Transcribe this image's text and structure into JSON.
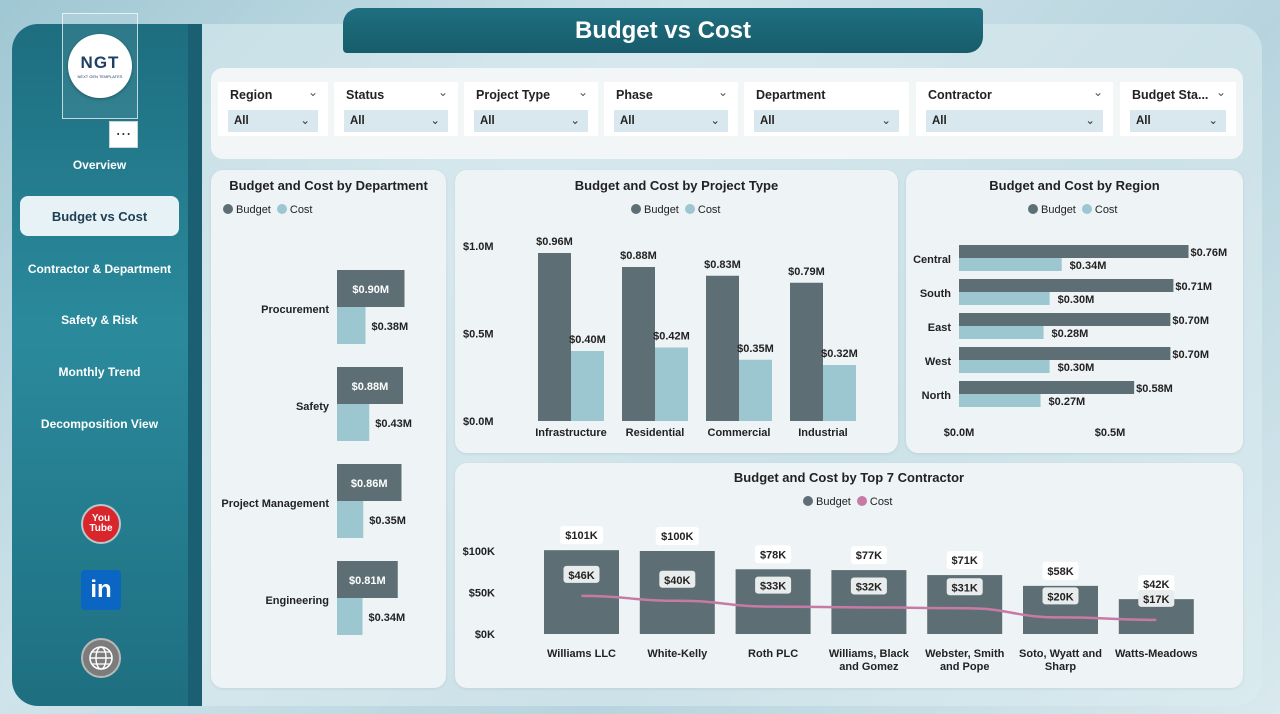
{
  "page_title": "Budget vs Cost",
  "logo": {
    "text": "NGT",
    "subtext": "NEXT GEN TEMPLATES"
  },
  "more_label": "⋯",
  "nav": [
    {
      "label": "Overview"
    },
    {
      "label": "Budget vs Cost"
    },
    {
      "label": "Contractor & Department"
    },
    {
      "label": "Safety & Risk"
    },
    {
      "label": "Monthly Trend"
    },
    {
      "label": "Decomposition View"
    }
  ],
  "social": {
    "youtube": "You Tube",
    "linkedin": "in"
  },
  "filters": [
    {
      "label": "Region",
      "value": "All"
    },
    {
      "label": "Status",
      "value": "All"
    },
    {
      "label": "Project Type",
      "value": "All"
    },
    {
      "label": "Phase",
      "value": "All"
    },
    {
      "label": "Department",
      "value": "All"
    },
    {
      "label": "Contractor",
      "value": "All"
    },
    {
      "label": "Budget Sta...",
      "value": "All"
    }
  ],
  "colors": {
    "budget": "#5d6f74",
    "cost": "#9cc6d0",
    "cost_line": "#c87aa6",
    "accent": "#1f6f80"
  },
  "legend": {
    "budget": "Budget",
    "cost": "Cost"
  },
  "chart_data": [
    {
      "id": "department",
      "type": "bar",
      "orientation": "horizontal",
      "title": "Budget and Cost by Department",
      "categories": [
        "Procurement",
        "Safety",
        "Project Management",
        "Engineering"
      ],
      "series": [
        {
          "name": "Budget",
          "values": [
            0.9,
            0.88,
            0.86,
            0.81
          ],
          "labels": [
            "$0.90M",
            "$0.88M",
            "$0.86M",
            "$0.81M"
          ]
        },
        {
          "name": "Cost",
          "values": [
            0.38,
            0.43,
            0.35,
            0.34
          ],
          "labels": [
            "$0.38M",
            "$0.43M",
            "$0.35M",
            "$0.34M"
          ]
        }
      ]
    },
    {
      "id": "project_type",
      "type": "bar",
      "orientation": "vertical",
      "title": "Budget and Cost by Project Type",
      "categories": [
        "Infrastructure",
        "Residential",
        "Commercial",
        "Industrial"
      ],
      "yticks": [
        "$1.0M",
        "$0.5M",
        "$0.0M"
      ],
      "ylim": [
        0,
        1.0
      ],
      "series": [
        {
          "name": "Budget",
          "values": [
            0.96,
            0.88,
            0.83,
            0.79
          ],
          "labels": [
            "$0.96M",
            "$0.88M",
            "$0.83M",
            "$0.79M"
          ]
        },
        {
          "name": "Cost",
          "values": [
            0.4,
            0.42,
            0.35,
            0.32
          ],
          "labels": [
            "$0.40M",
            "$0.42M",
            "$0.35M",
            "$0.32M"
          ]
        }
      ]
    },
    {
      "id": "region",
      "type": "bar",
      "orientation": "horizontal",
      "title": "Budget and Cost by Region",
      "categories": [
        "Central",
        "South",
        "East",
        "West",
        "North"
      ],
      "xticks": [
        "$0.0M",
        "$0.5M"
      ],
      "series": [
        {
          "name": "Budget",
          "values": [
            0.76,
            0.71,
            0.7,
            0.7,
            0.58
          ],
          "labels": [
            "$0.76M",
            "$0.71M",
            "$0.70M",
            "$0.70M",
            "$0.58M"
          ]
        },
        {
          "name": "Cost",
          "values": [
            0.34,
            0.3,
            0.28,
            0.3,
            0.27
          ],
          "labels": [
            "$0.34M",
            "$0.30M",
            "$0.28M",
            "$0.30M",
            "$0.27M"
          ]
        }
      ]
    },
    {
      "id": "contractor",
      "type": "bar",
      "orientation": "vertical",
      "title": "Budget and Cost by Top 7 Contractor",
      "categories": [
        "Williams LLC",
        "White-Kelly",
        "Roth PLC",
        "Williams, Black and Gomez",
        "Webster, Smith and Pope",
        "Soto, Wyatt and Sharp",
        "Watts-Meadows"
      ],
      "category_lines": [
        [
          "Williams LLC"
        ],
        [
          "White-Kelly"
        ],
        [
          "Roth PLC"
        ],
        [
          "Williams, Black",
          "and Gomez"
        ],
        [
          "Webster, Smith",
          "and Pope"
        ],
        [
          "Soto, Wyatt and",
          "Sharp"
        ],
        [
          "Watts-Meadows"
        ]
      ],
      "yticks": [
        "$100K",
        "$50K",
        "$0K"
      ],
      "ylim": [
        0,
        100
      ],
      "series": [
        {
          "name": "Budget",
          "type": "bar",
          "values": [
            101,
            100,
            78,
            77,
            71,
            58,
            42
          ],
          "labels": [
            "$101K",
            "$100K",
            "$78K",
            "$77K",
            "$71K",
            "$58K",
            "$42K"
          ]
        },
        {
          "name": "Cost",
          "type": "line",
          "values": [
            46,
            40,
            33,
            32,
            31,
            20,
            17
          ],
          "labels": [
            "$46K",
            "$40K",
            "$33K",
            "$32K",
            "$31K",
            "$20K",
            "$17K"
          ]
        }
      ]
    }
  ]
}
